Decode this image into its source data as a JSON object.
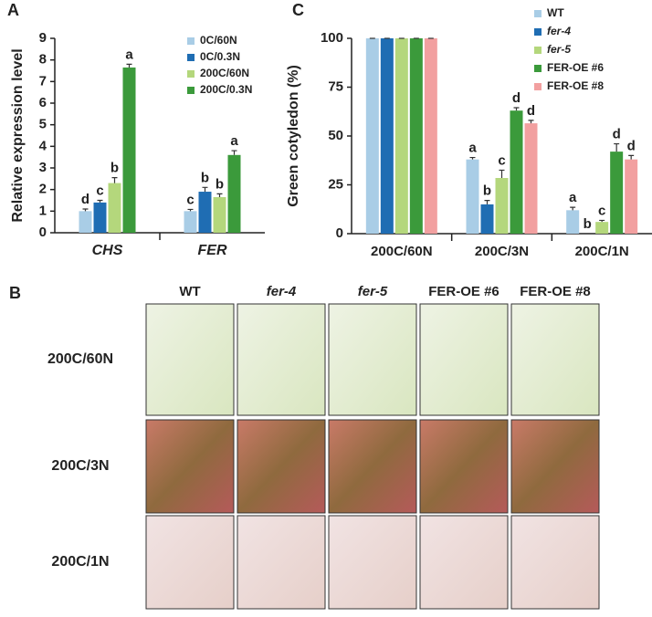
{
  "chart_data": [
    {
      "type": "bar",
      "panel": "A",
      "ylabel": "Relative expression level",
      "categories": [
        "CHS",
        "FER"
      ],
      "series": [
        {
          "name": "0C/60N",
          "color": "#a9cde6",
          "values": [
            1.0,
            1.0
          ],
          "errors": [
            0.1,
            0.08
          ],
          "letters": [
            "d",
            "c"
          ]
        },
        {
          "name": "0C/0.3N",
          "color": "#1f6db3",
          "values": [
            1.4,
            1.9
          ],
          "errors": [
            0.1,
            0.2
          ],
          "letters": [
            "c",
            "b"
          ]
        },
        {
          "name": "200C/60N",
          "color": "#b4d77c",
          "values": [
            2.3,
            1.65
          ],
          "errors": [
            0.25,
            0.15
          ],
          "letters": [
            "b",
            "b"
          ]
        },
        {
          "name": "200C/0.3N",
          "color": "#3b9a3b",
          "values": [
            7.65,
            3.6
          ],
          "errors": [
            0.15,
            0.2
          ],
          "letters": [
            "a",
            "a"
          ]
        }
      ],
      "ylim": [
        0,
        9
      ],
      "yticks": [
        0,
        1,
        2,
        3,
        4,
        5,
        6,
        7,
        8,
        9
      ],
      "legend": "upper right"
    },
    {
      "type": "bar",
      "panel": "C",
      "ylabel": "Green cotyledon (%)",
      "categories": [
        "200C/60N",
        "200C/3N",
        "200C/1N"
      ],
      "series": [
        {
          "name": "WT",
          "color": "#a9cde6",
          "values": [
            100,
            38,
            12
          ],
          "errors": [
            0,
            1,
            1.5
          ],
          "letters": [
            null,
            "a",
            "a"
          ]
        },
        {
          "name": "fer-4",
          "color": "#1f6db3",
          "values": [
            100,
            15,
            0
          ],
          "errors": [
            0,
            2,
            0
          ],
          "letters": [
            null,
            "b",
            "b"
          ]
        },
        {
          "name": "fer-5",
          "color": "#b4d77c",
          "values": [
            100,
            28.5,
            6
          ],
          "errors": [
            0,
            4,
            0.8
          ],
          "letters": [
            null,
            "c",
            "c"
          ]
        },
        {
          "name": "FER-OE #6",
          "color": "#3b9a3b",
          "values": [
            100,
            63,
            42
          ],
          "errors": [
            0,
            1.5,
            4
          ],
          "letters": [
            null,
            "d",
            "d"
          ]
        },
        {
          "name": "FER-OE #8",
          "color": "#f2a0a0",
          "values": [
            100,
            56.5,
            38
          ],
          "errors": [
            0,
            1.5,
            2
          ],
          "letters": [
            null,
            "d",
            "d"
          ]
        }
      ],
      "ylim": [
        0,
        100
      ],
      "yticks": [
        0,
        25,
        50,
        75,
        100
      ],
      "legend": "upper left outside"
    }
  ],
  "panel_b": {
    "letter": "B",
    "columns": [
      "WT",
      "fer-4",
      "fer-5",
      "FER-OE #6",
      "FER-OE #8"
    ],
    "rows": [
      "200C/60N",
      "200C/3N",
      "200C/1N"
    ]
  }
}
